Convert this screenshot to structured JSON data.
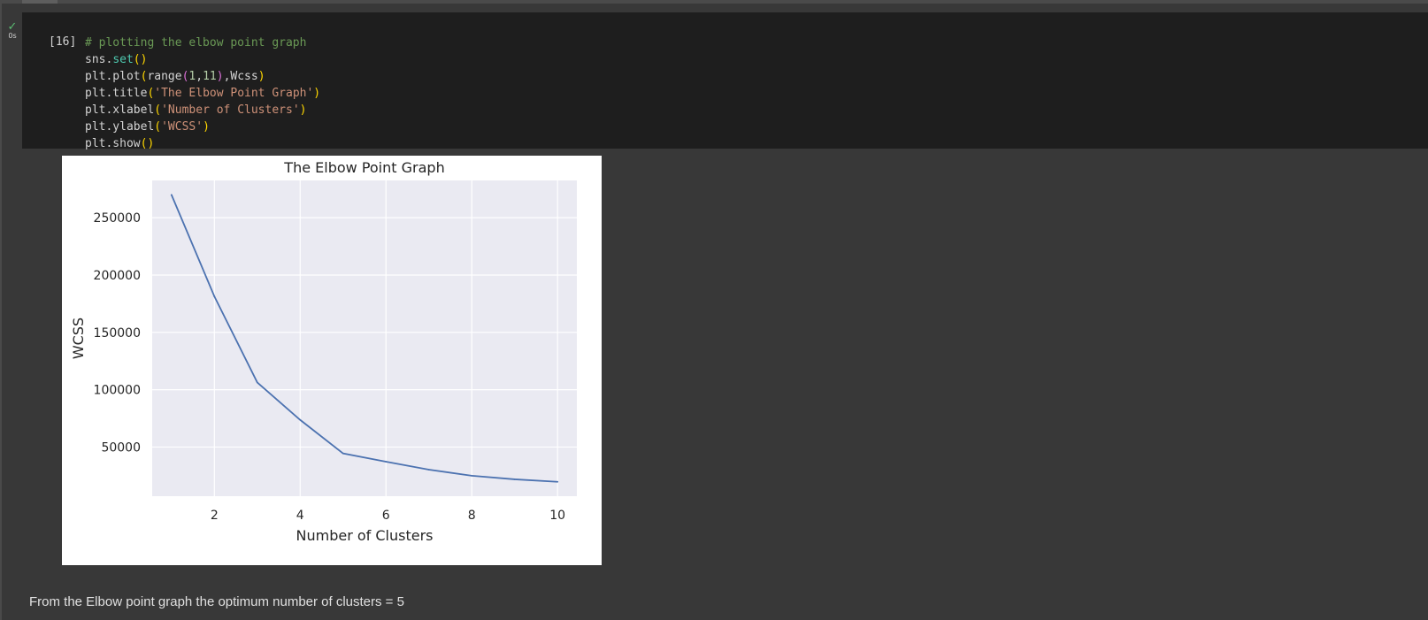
{
  "cell": {
    "execution_count": "[16]",
    "status_icon": "check-icon",
    "run_time": "0s",
    "code_lines": [
      [
        {
          "t": "# plotting the elbow point graph",
          "c": "comment"
        }
      ],
      [
        {
          "t": "sns.",
          "c": "plain"
        },
        {
          "t": "set",
          "c": "func"
        },
        {
          "t": "()",
          "c": "paren"
        }
      ],
      [
        {
          "t": "plt.plot",
          "c": "plain"
        },
        {
          "t": "(",
          "c": "paren"
        },
        {
          "t": "range",
          "c": "plain"
        },
        {
          "t": "(",
          "c": "paren2"
        },
        {
          "t": "1",
          "c": "num"
        },
        {
          "t": ",",
          "c": "plain"
        },
        {
          "t": "11",
          "c": "num"
        },
        {
          "t": ")",
          "c": "paren2"
        },
        {
          "t": ",Wcss",
          "c": "plain"
        },
        {
          "t": ")",
          "c": "paren"
        }
      ],
      [
        {
          "t": "plt.title",
          "c": "plain"
        },
        {
          "t": "(",
          "c": "paren"
        },
        {
          "t": "'The Elbow Point Graph'",
          "c": "str"
        },
        {
          "t": ")",
          "c": "paren"
        }
      ],
      [
        {
          "t": "plt.xlabel",
          "c": "plain"
        },
        {
          "t": "(",
          "c": "paren"
        },
        {
          "t": "'Number of Clusters'",
          "c": "str"
        },
        {
          "t": ")",
          "c": "paren"
        }
      ],
      [
        {
          "t": "plt.ylabel",
          "c": "plain"
        },
        {
          "t": "(",
          "c": "paren"
        },
        {
          "t": "'WCSS'",
          "c": "str"
        },
        {
          "t": ")",
          "c": "paren"
        }
      ],
      [
        {
          "t": "plt.show",
          "c": "plain"
        },
        {
          "t": "()",
          "c": "paren"
        }
      ]
    ]
  },
  "colors": {
    "app_background": "#383838",
    "cell_background": "#1e1e1e",
    "success_check": "#5bbd72",
    "plot_background": "#eaeaf2",
    "line_color": "#4c72b0"
  },
  "chart_data": {
    "type": "line",
    "title": "The Elbow Point Graph",
    "xlabel": "Number of Clusters",
    "ylabel": "WCSS",
    "x": [
      1,
      2,
      3,
      4,
      5,
      6,
      7,
      8,
      9,
      10
    ],
    "series": [
      {
        "values": [
          269981,
          181364,
          106348,
          73679,
          44448,
          37265,
          30260,
          25012,
          21850,
          19673
        ]
      }
    ],
    "xlim": [
      0.55,
      10.45
    ],
    "ylim": [
      7158,
      282496
    ],
    "xticks": [
      2,
      4,
      6,
      8,
      10
    ],
    "xtick_labels": [
      "2",
      "4",
      "6",
      "8",
      "10"
    ],
    "yticks": [
      50000,
      100000,
      150000,
      200000,
      250000
    ],
    "ytick_labels": [
      "50000",
      "100000",
      "150000",
      "200000",
      "250000"
    ],
    "grid": true,
    "style": "seaborn darkgrid"
  },
  "markdown": {
    "text": "From the Elbow point graph the optimum number of clusters = 5"
  }
}
